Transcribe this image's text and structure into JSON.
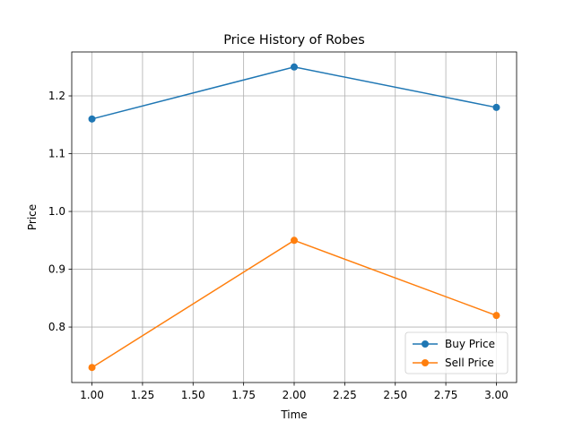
{
  "chart_data": {
    "type": "line",
    "title": "Price History of Robes",
    "xlabel": "Time",
    "ylabel": "Price",
    "x": [
      1.0,
      2.0,
      3.0
    ],
    "series": [
      {
        "name": "Buy Price",
        "values": [
          1.16,
          1.25,
          1.18
        ],
        "color": "#1f77b4",
        "marker": "circle"
      },
      {
        "name": "Sell Price",
        "values": [
          0.73,
          0.95,
          0.82
        ],
        "color": "#ff7f0e",
        "marker": "circle"
      }
    ],
    "xlim": [
      0.9,
      3.1
    ],
    "ylim": [
      0.704,
      1.276
    ],
    "xticks": [
      1.0,
      1.25,
      1.5,
      1.75,
      2.0,
      2.25,
      2.5,
      2.75,
      3.0
    ],
    "xtick_labels": [
      "1.00",
      "1.25",
      "1.50",
      "1.75",
      "2.00",
      "2.25",
      "2.50",
      "2.75",
      "3.00"
    ],
    "yticks": [
      0.8,
      0.9,
      1.0,
      1.1,
      1.2
    ],
    "ytick_labels": [
      "0.8",
      "0.9",
      "1.0",
      "1.1",
      "1.2"
    ],
    "grid": true,
    "legend_position": "lower-right"
  }
}
